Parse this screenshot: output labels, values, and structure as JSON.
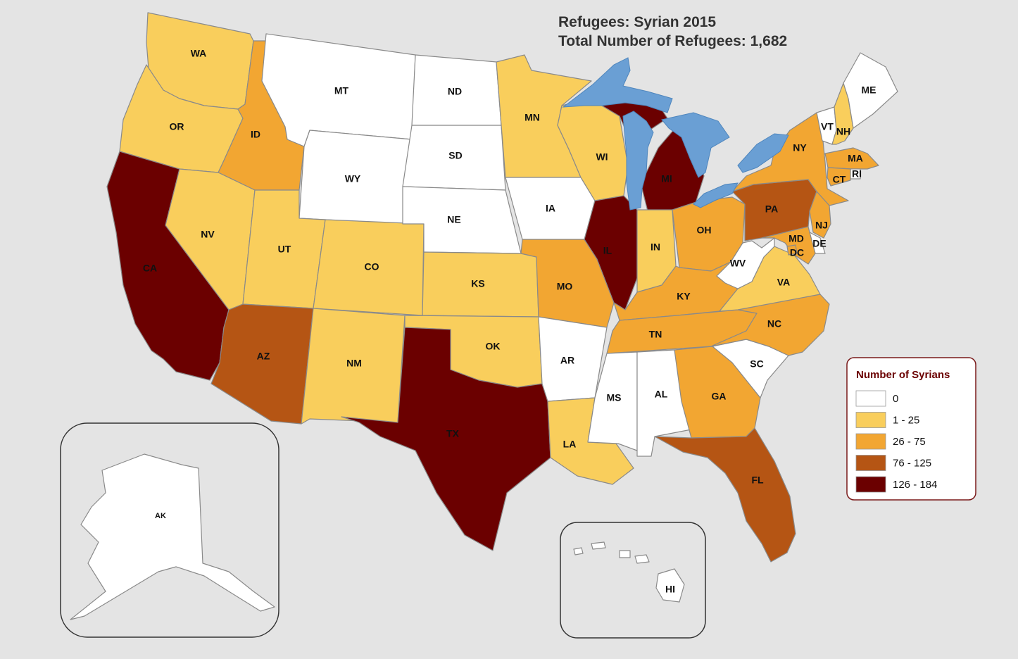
{
  "title": {
    "line1": "Refugees:  Syrian 2015",
    "line2": "Total Number of Refugees: 1,682"
  },
  "legend": {
    "title": "Number of Syrians",
    "items": [
      {
        "label": "0",
        "color": "#ffffff"
      },
      {
        "label": "1 - 25",
        "color": "#f9ce5c"
      },
      {
        "label": "26 - 75",
        "color": "#f2a632"
      },
      {
        "label": "76 - 125",
        "color": "#b55514"
      },
      {
        "label": "126 - 184",
        "color": "#6b0000"
      }
    ]
  },
  "colors": {
    "background": "#e4e4e4",
    "lakes": "#6a9fd4",
    "title_text": "#333333",
    "legend_title": "#6b0000"
  },
  "states": [
    {
      "abbr": "WA",
      "category": "1 - 25"
    },
    {
      "abbr": "OR",
      "category": "1 - 25"
    },
    {
      "abbr": "CA",
      "category": "126 - 184"
    },
    {
      "abbr": "ID",
      "category": "26 - 75"
    },
    {
      "abbr": "NV",
      "category": "1 - 25"
    },
    {
      "abbr": "MT",
      "category": "0"
    },
    {
      "abbr": "WY",
      "category": "0"
    },
    {
      "abbr": "UT",
      "category": "1 - 25"
    },
    {
      "abbr": "AZ",
      "category": "76 - 125"
    },
    {
      "abbr": "CO",
      "category": "1 - 25"
    },
    {
      "abbr": "NM",
      "category": "1 - 25"
    },
    {
      "abbr": "ND",
      "category": "0"
    },
    {
      "abbr": "SD",
      "category": "0"
    },
    {
      "abbr": "NE",
      "category": "0"
    },
    {
      "abbr": "KS",
      "category": "1 - 25"
    },
    {
      "abbr": "OK",
      "category": "1 - 25"
    },
    {
      "abbr": "TX",
      "category": "126 - 184"
    },
    {
      "abbr": "MN",
      "category": "1 - 25"
    },
    {
      "abbr": "IA",
      "category": "0"
    },
    {
      "abbr": "MO",
      "category": "26 - 75"
    },
    {
      "abbr": "AR",
      "category": "0"
    },
    {
      "abbr": "LA",
      "category": "1 - 25"
    },
    {
      "abbr": "WI",
      "category": "1 - 25"
    },
    {
      "abbr": "IL",
      "category": "126 - 184"
    },
    {
      "abbr": "MI",
      "category": "126 - 184"
    },
    {
      "abbr": "IN",
      "category": "1 - 25"
    },
    {
      "abbr": "OH",
      "category": "26 - 75"
    },
    {
      "abbr": "KY",
      "category": "26 - 75"
    },
    {
      "abbr": "TN",
      "category": "26 - 75"
    },
    {
      "abbr": "MS",
      "category": "0"
    },
    {
      "abbr": "AL",
      "category": "0"
    },
    {
      "abbr": "GA",
      "category": "26 - 75"
    },
    {
      "abbr": "FL",
      "category": "76 - 125"
    },
    {
      "abbr": "SC",
      "category": "0"
    },
    {
      "abbr": "NC",
      "category": "26 - 75"
    },
    {
      "abbr": "VA",
      "category": "1 - 25"
    },
    {
      "abbr": "WV",
      "category": "0"
    },
    {
      "abbr": "PA",
      "category": "76 - 125"
    },
    {
      "abbr": "NY",
      "category": "26 - 75"
    },
    {
      "abbr": "VT",
      "category": "0"
    },
    {
      "abbr": "NH",
      "category": "1 - 25"
    },
    {
      "abbr": "ME",
      "category": "0"
    },
    {
      "abbr": "MA",
      "category": "26 - 75"
    },
    {
      "abbr": "RI",
      "category": "0"
    },
    {
      "abbr": "CT",
      "category": "26 - 75"
    },
    {
      "abbr": "NJ",
      "category": "26 - 75"
    },
    {
      "abbr": "DE",
      "category": "0"
    },
    {
      "abbr": "MD",
      "category": "26 - 75"
    },
    {
      "abbr": "DC",
      "category": "26 - 75"
    },
    {
      "abbr": "AK",
      "category": "0"
    },
    {
      "abbr": "HI",
      "category": "0"
    }
  ]
}
